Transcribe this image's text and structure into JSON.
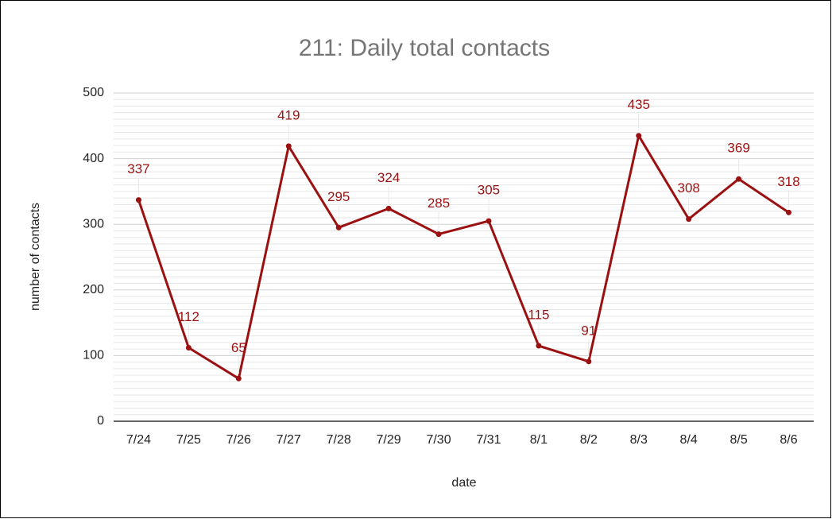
{
  "chart_data": {
    "type": "line",
    "title": "211: Daily total contacts",
    "x_label": "date",
    "y_label": "number of contacts",
    "categories": [
      "7/24",
      "7/25",
      "7/26",
      "7/27",
      "7/28",
      "7/29",
      "7/30",
      "7/31",
      "8/1",
      "8/2",
      "8/3",
      "8/4",
      "8/5",
      "8/6"
    ],
    "series": [
      {
        "name": "number of contacts",
        "color": "#9b1111",
        "values": [
          337,
          112,
          65,
          419,
          295,
          324,
          285,
          305,
          115,
          91,
          435,
          308,
          369,
          318
        ]
      }
    ],
    "ylim": [
      0,
      500
    ],
    "yticks": [
      0,
      100,
      200,
      300,
      400,
      500
    ],
    "grid": true,
    "data_labels": true
  }
}
